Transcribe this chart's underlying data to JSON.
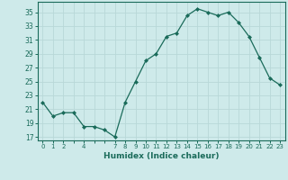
{
  "x": [
    0,
    1,
    2,
    3,
    4,
    5,
    6,
    7,
    8,
    9,
    10,
    11,
    12,
    13,
    14,
    15,
    16,
    17,
    18,
    19,
    20,
    21,
    22,
    23
  ],
  "y": [
    22,
    20,
    20.5,
    20.5,
    18.5,
    18.5,
    18,
    17,
    22,
    25,
    28,
    29,
    31.5,
    32,
    34.5,
    35.5,
    35,
    34.5,
    35,
    33.5,
    31.5,
    28.5,
    25.5,
    24.5
  ],
  "line_color": "#1a6b5a",
  "marker": "D",
  "marker_size": 2.0,
  "bg_color": "#ceeaea",
  "grid_color": "#b8d8d8",
  "xlabel": "Humidex (Indice chaleur)",
  "ylabel_ticks": [
    17,
    19,
    21,
    23,
    25,
    27,
    29,
    31,
    33,
    35
  ],
  "xtick_labels": [
    "0",
    "1",
    "2",
    "",
    "4",
    "",
    "",
    "7",
    "8",
    "9",
    "10",
    "11",
    "12",
    "13",
    "14",
    "15",
    "16",
    "17",
    "18",
    "19",
    "20",
    "21",
    "22",
    "23"
  ],
  "xlim": [
    -0.5,
    23.5
  ],
  "ylim": [
    16.5,
    36.5
  ],
  "tick_color": "#1a6b5a",
  "label_color": "#1a6b5a",
  "spine_color": "#1a6b5a"
}
